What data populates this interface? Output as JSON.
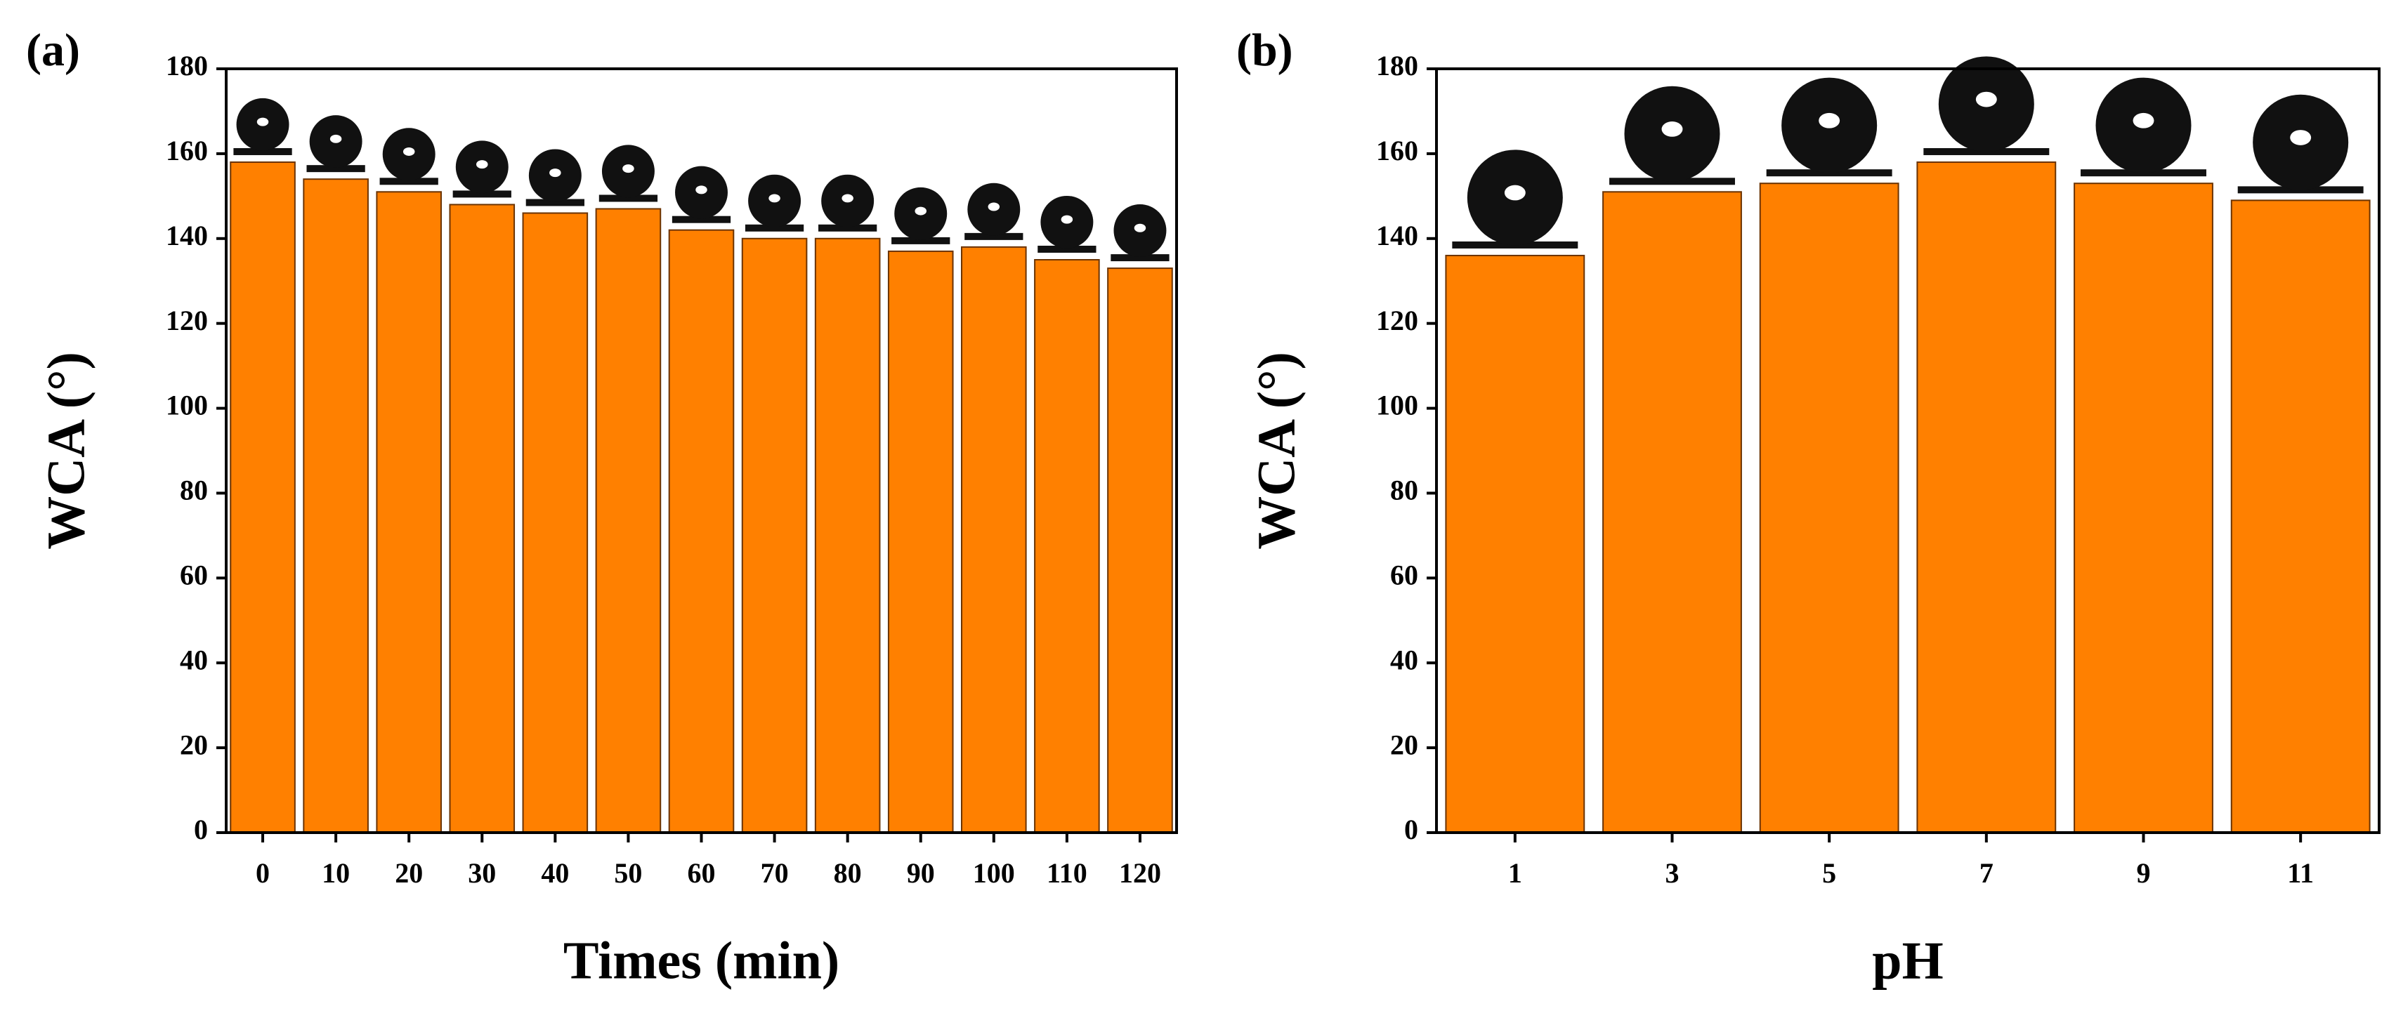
{
  "chart_data": [
    {
      "type": "bar",
      "panel_label": "(a)",
      "x_label": "Times (min)",
      "y_label": "WCA (°)",
      "categories": [
        "0",
        "10",
        "20",
        "30",
        "40",
        "50",
        "60",
        "70",
        "80",
        "90",
        "100",
        "110",
        "120"
      ],
      "values": [
        158,
        154,
        151,
        148,
        146,
        147,
        142,
        140,
        140,
        137,
        138,
        135,
        133
      ],
      "color": "#ff8000",
      "ylim": [
        0,
        180
      ],
      "yticks": [
        0,
        20,
        40,
        60,
        80,
        100,
        120,
        140,
        160,
        180
      ]
    },
    {
      "type": "bar",
      "panel_label": "(b)",
      "x_label": "pH",
      "y_label": "WCA (°)",
      "categories": [
        "1",
        "3",
        "5",
        "7",
        "9",
        "11"
      ],
      "values": [
        136,
        151,
        153,
        158,
        153,
        149
      ],
      "color": "#ff8000",
      "ylim": [
        0,
        180
      ],
      "yticks": [
        0,
        20,
        40,
        60,
        80,
        100,
        120,
        140,
        160,
        180
      ]
    }
  ]
}
